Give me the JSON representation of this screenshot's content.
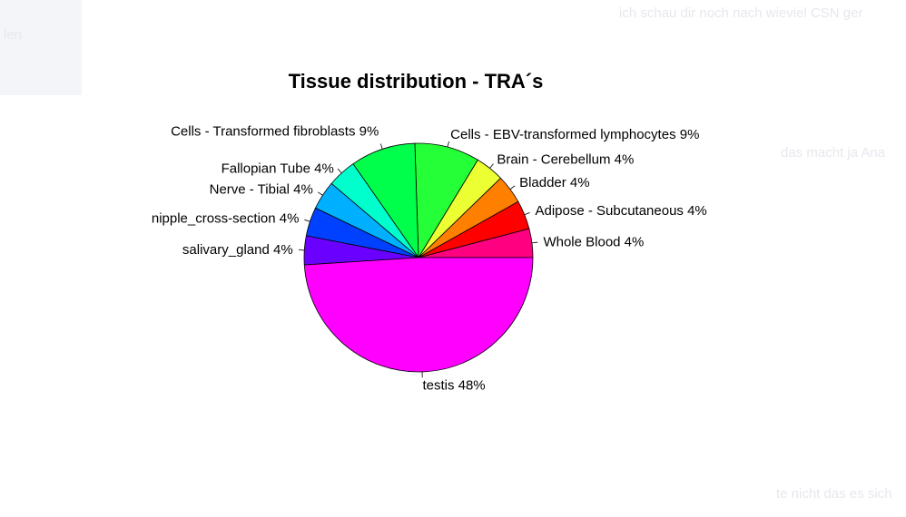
{
  "background": {
    "top_right_text": "ich schau dir noch nach wieviel CSN ger",
    "left_text": "len",
    "right_mid_text": "das macht ja Ana",
    "bottom_right_text": "te nicht das es sich"
  },
  "chart_data": {
    "type": "pie",
    "title": "Tissue distribution - TRA´s",
    "slices": [
      {
        "label": "Whole Blood 4%",
        "value": 4,
        "color": "#ff0080"
      },
      {
        "label": "Adipose - Subcutaneous 4%",
        "value": 4,
        "color": "#ff0000"
      },
      {
        "label": "Bladder 4%",
        "value": 4,
        "color": "#ff8000"
      },
      {
        "label": "Brain - Cerebellum 4%",
        "value": 4,
        "color": "#ecff32"
      },
      {
        "label": "Cells - EBV-transformed lymphocytes 9%",
        "value": 9,
        "color": "#25ff37"
      },
      {
        "label": "Cells - Transformed fibroblasts 9%",
        "value": 9,
        "color": "#00ff4a"
      },
      {
        "label": "Fallopian Tube 4%",
        "value": 4,
        "color": "#00ffcc"
      },
      {
        "label": "Nerve - Tibial 4%",
        "value": 4,
        "color": "#00b0ff"
      },
      {
        "label": "nipple_cross-section 4%",
        "value": 4,
        "color": "#0040ff"
      },
      {
        "label": "salivary_gland 4%",
        "value": 4,
        "color": "#6a00ff"
      },
      {
        "label": "testis 48%",
        "value": 48,
        "color": "#ff00ff"
      }
    ],
    "start_angle_deg": 0,
    "direction": "counterclockwise"
  }
}
